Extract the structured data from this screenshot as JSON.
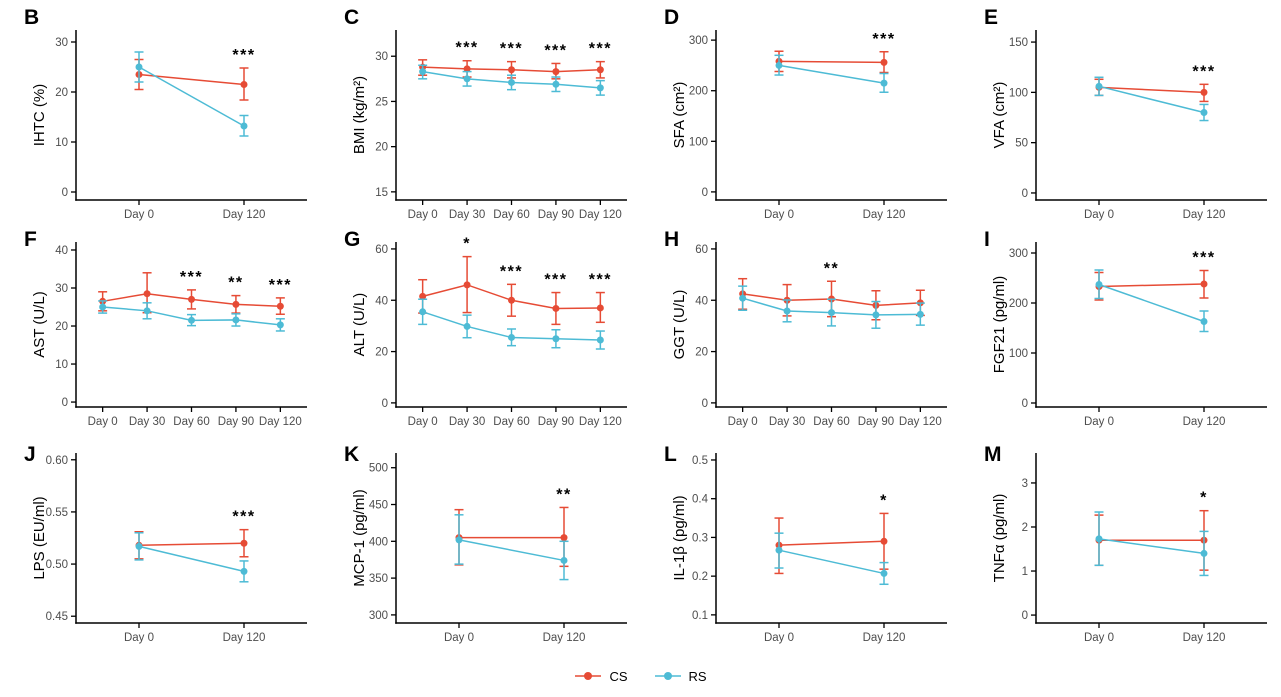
{
  "figure": {
    "colors": {
      "cs": "#E64B35",
      "rs": "#4DBBD5",
      "axis": "#000000",
      "tick_text": "#4D4D4D",
      "sig": "#000000"
    },
    "legend": {
      "items": [
        {
          "name": "CS",
          "label": "CS",
          "color": "#E64B35"
        },
        {
          "name": "RS",
          "label": "RS",
          "color": "#4DBBD5"
        }
      ]
    }
  },
  "chart_data": [
    {
      "type": "line",
      "panel": "B",
      "ylabel": "IHTC (%)",
      "categories": [
        "Day 0",
        "Day 120"
      ],
      "ylim": [
        -1.6,
        32.4
      ],
      "yticks": [
        0,
        10,
        20,
        30
      ],
      "ytick_labels": [
        "0",
        "10",
        "20",
        "30"
      ],
      "series": [
        {
          "name": "CS",
          "values": [
            23.5,
            21.5
          ],
          "err_lo": [
            20.5,
            18.4
          ],
          "err_hi": [
            26.5,
            24.8
          ]
        },
        {
          "name": "RS",
          "values": [
            25.0,
            13.2
          ],
          "err_lo": [
            22.0,
            11.2
          ],
          "err_hi": [
            28.0,
            15.3
          ]
        }
      ],
      "sig": [
        "",
        "***"
      ]
    },
    {
      "type": "line",
      "panel": "C",
      "ylabel": "BMI (kg/m²)",
      "categories": [
        "Day 0",
        "Day 30",
        "Day 60",
        "Day 90",
        "Day 120"
      ],
      "ylim": [
        14.1,
        32.9
      ],
      "yticks": [
        15,
        20,
        25,
        30
      ],
      "ytick_labels": [
        "15",
        "20",
        "25",
        "30"
      ],
      "series": [
        {
          "name": "CS",
          "values": [
            28.8,
            28.6,
            28.5,
            28.3,
            28.5
          ],
          "err_lo": [
            27.9,
            27.7,
            27.6,
            27.5,
            27.6
          ],
          "err_hi": [
            29.6,
            29.5,
            29.4,
            29.2,
            29.4
          ]
        },
        {
          "name": "RS",
          "values": [
            28.3,
            27.5,
            27.1,
            26.9,
            26.5
          ],
          "err_lo": [
            27.5,
            26.7,
            26.3,
            26.1,
            25.7
          ],
          "err_hi": [
            29.0,
            28.3,
            27.9,
            27.7,
            27.3
          ]
        }
      ],
      "sig": [
        "",
        "***",
        "***",
        "***",
        "***"
      ]
    },
    {
      "type": "line",
      "panel": "D",
      "ylabel": "SFA (cm²)",
      "categories": [
        "Day 0",
        "Day 120"
      ],
      "ylim": [
        -16,
        320
      ],
      "yticks": [
        0,
        100,
        200,
        300
      ],
      "ytick_labels": [
        "0",
        "100",
        "200",
        "300"
      ],
      "series": [
        {
          "name": "CS",
          "values": [
            258,
            256
          ],
          "err_lo": [
            238,
            236
          ],
          "err_hi": [
            278,
            277
          ]
        },
        {
          "name": "RS",
          "values": [
            250,
            215
          ],
          "err_lo": [
            231,
            197
          ],
          "err_hi": [
            270,
            234
          ]
        }
      ],
      "sig": [
        "",
        "***"
      ]
    },
    {
      "type": "line",
      "panel": "E",
      "ylabel": "VFA (cm²)",
      "categories": [
        "Day 0",
        "Day 120"
      ],
      "ylim": [
        -7,
        162
      ],
      "yticks": [
        0,
        50,
        100,
        150
      ],
      "ytick_labels": [
        "0",
        "50",
        "100",
        "150"
      ],
      "series": [
        {
          "name": "CS",
          "values": [
            105,
            100
          ],
          "err_lo": [
            97,
            91
          ],
          "err_hi": [
            113,
            108
          ]
        },
        {
          "name": "RS",
          "values": [
            106,
            80
          ],
          "err_lo": [
            97,
            72
          ],
          "err_hi": [
            115,
            88
          ]
        }
      ],
      "sig": [
        "",
        "***"
      ]
    },
    {
      "type": "line",
      "panel": "F",
      "ylabel": "AST (U/L)",
      "categories": [
        "Day 0",
        "Day 30",
        "Day 60",
        "Day 90",
        "Day 120"
      ],
      "ylim": [
        -1.3,
        42.1
      ],
      "yticks": [
        0,
        10,
        20,
        30,
        40
      ],
      "ytick_labels": [
        "0",
        "10",
        "20",
        "30",
        "40"
      ],
      "series": [
        {
          "name": "CS",
          "values": [
            26.5,
            28.5,
            27.0,
            25.7,
            25.2
          ],
          "err_lo": [
            24.0,
            23.5,
            24.5,
            23.4,
            23.1
          ],
          "err_hi": [
            29.0,
            34.0,
            29.5,
            28.0,
            27.4
          ]
        },
        {
          "name": "RS",
          "values": [
            25.0,
            24.0,
            21.5,
            21.6,
            20.3
          ],
          "err_lo": [
            23.4,
            21.9,
            20.1,
            20.0,
            18.7
          ],
          "err_hi": [
            26.6,
            26.1,
            23.0,
            23.2,
            21.9
          ]
        }
      ],
      "sig": [
        "",
        "",
        "***",
        "**",
        "***"
      ]
    },
    {
      "type": "line",
      "panel": "G",
      "ylabel": "ALT (U/L)",
      "categories": [
        "Day 0",
        "Day 30",
        "Day 60",
        "Day 90",
        "Day 120"
      ],
      "ylim": [
        -1.6,
        62.7
      ],
      "yticks": [
        0,
        20,
        40,
        60
      ],
      "ytick_labels": [
        "0",
        "20",
        "40",
        "60"
      ],
      "series": [
        {
          "name": "CS",
          "values": [
            41.5,
            46.0,
            40.0,
            36.8,
            37.0
          ],
          "err_lo": [
            35.0,
            35.2,
            33.8,
            30.6,
            31.4
          ],
          "err_hi": [
            48.0,
            57.0,
            46.2,
            43.0,
            43.0
          ]
        },
        {
          "name": "RS",
          "values": [
            35.5,
            29.8,
            25.5,
            25.0,
            24.5
          ],
          "err_lo": [
            30.6,
            25.4,
            22.3,
            21.5,
            21.0
          ],
          "err_hi": [
            40.4,
            34.2,
            28.8,
            28.5,
            28.0
          ]
        }
      ],
      "sig": [
        "",
        "*",
        "***",
        "***",
        "***"
      ]
    },
    {
      "type": "line",
      "panel": "H",
      "ylabel": "GGT (U/L)",
      "categories": [
        "Day 0",
        "Day 30",
        "Day 60",
        "Day 90",
        "Day 120"
      ],
      "ylim": [
        -1.6,
        62.7
      ],
      "yticks": [
        0,
        20,
        40,
        60
      ],
      "ytick_labels": [
        "0",
        "20",
        "40",
        "60"
      ],
      "series": [
        {
          "name": "CS",
          "values": [
            42.5,
            40.0,
            40.5,
            38.0,
            39.0
          ],
          "err_lo": [
            36.5,
            33.9,
            33.6,
            32.4,
            34.1
          ],
          "err_hi": [
            48.4,
            46.1,
            47.4,
            43.7,
            43.9
          ]
        },
        {
          "name": "RS",
          "values": [
            40.8,
            35.8,
            35.2,
            34.3,
            34.5
          ],
          "err_lo": [
            36.1,
            31.6,
            30.0,
            29.1,
            30.3
          ],
          "err_hi": [
            45.5,
            40.1,
            40.4,
            39.5,
            38.9
          ]
        }
      ],
      "sig": [
        "",
        "",
        "**",
        "",
        ""
      ]
    },
    {
      "type": "line",
      "panel": "I",
      "ylabel": "FGF21 (pg/ml)",
      "categories": [
        "Day 0",
        "Day 120"
      ],
      "ylim": [
        -8,
        322
      ],
      "yticks": [
        0,
        100,
        200,
        300
      ],
      "ytick_labels": [
        "0",
        "100",
        "200",
        "300"
      ],
      "series": [
        {
          "name": "CS",
          "values": [
            233,
            238
          ],
          "err_lo": [
            206,
            210
          ],
          "err_hi": [
            261,
            265
          ]
        },
        {
          "name": "RS",
          "values": [
            237,
            163
          ],
          "err_lo": [
            209,
            143
          ],
          "err_hi": [
            266,
            184
          ]
        }
      ],
      "sig": [
        "",
        "***"
      ]
    },
    {
      "type": "line",
      "panel": "J",
      "ylabel": "LPS (EU/ml)",
      "categories": [
        "Day 0",
        "Day 120"
      ],
      "ylim": [
        0.4435,
        0.6065
      ],
      "yticks": [
        0.45,
        0.5,
        0.55,
        0.6
      ],
      "ytick_labels": [
        "0.45",
        "0.50",
        "0.55",
        "0.60"
      ],
      "series": [
        {
          "name": "CS",
          "values": [
            0.518,
            0.52
          ],
          "err_lo": [
            0.505,
            0.507
          ],
          "err_hi": [
            0.531,
            0.533
          ]
        },
        {
          "name": "RS",
          "values": [
            0.517,
            0.493
          ],
          "err_lo": [
            0.504,
            0.483
          ],
          "err_hi": [
            0.53,
            0.503
          ]
        }
      ],
      "sig": [
        "",
        "***"
      ]
    },
    {
      "type": "line",
      "panel": "K",
      "ylabel": "MCP-1 (pg/ml)",
      "categories": [
        "Day 0",
        "Day 120"
      ],
      "ylim": [
        289,
        520
      ],
      "yticks": [
        300,
        350,
        400,
        450,
        500
      ],
      "ytick_labels": [
        "300",
        "350",
        "400",
        "450",
        "500"
      ],
      "series": [
        {
          "name": "CS",
          "values": [
            405,
            405
          ],
          "err_lo": [
            368,
            366
          ],
          "err_hi": [
            443,
            446
          ]
        },
        {
          "name": "RS",
          "values": [
            402,
            374
          ],
          "err_lo": [
            369,
            348
          ],
          "err_hi": [
            436,
            400
          ]
        }
      ],
      "sig": [
        "",
        "**"
      ]
    },
    {
      "type": "line",
      "panel": "L",
      "ylabel": "IL-1β (pg/ml)",
      "categories": [
        "Day 0",
        "Day 120"
      ],
      "ylim": [
        0.079,
        0.518
      ],
      "yticks": [
        0.1,
        0.2,
        0.3,
        0.4,
        0.5
      ],
      "ytick_labels": [
        "0.1",
        "0.2",
        "0.3",
        "0.4",
        "0.5"
      ],
      "series": [
        {
          "name": "CS",
          "values": [
            0.28,
            0.29
          ],
          "err_lo": [
            0.207,
            0.218
          ],
          "err_hi": [
            0.35,
            0.362
          ]
        },
        {
          "name": "RS",
          "values": [
            0.267,
            0.207
          ],
          "err_lo": [
            0.221,
            0.179
          ],
          "err_hi": [
            0.311,
            0.235
          ]
        }
      ],
      "sig": [
        "",
        "*"
      ]
    },
    {
      "type": "line",
      "panel": "M",
      "ylabel": "TNFα (pg/ml)",
      "categories": [
        "Day 0",
        "Day 120"
      ],
      "ylim": [
        -0.18,
        3.68
      ],
      "yticks": [
        0,
        1,
        2,
        3
      ],
      "ytick_labels": [
        "0",
        "1",
        "2",
        "3"
      ],
      "series": [
        {
          "name": "CS",
          "values": [
            1.7,
            1.7
          ],
          "err_lo": [
            1.13,
            1.02
          ],
          "err_hi": [
            2.27,
            2.37
          ]
        },
        {
          "name": "RS",
          "values": [
            1.73,
            1.4
          ],
          "err_lo": [
            1.13,
            0.9
          ],
          "err_hi": [
            2.34,
            1.9
          ]
        }
      ],
      "sig": [
        "",
        "*"
      ]
    }
  ]
}
